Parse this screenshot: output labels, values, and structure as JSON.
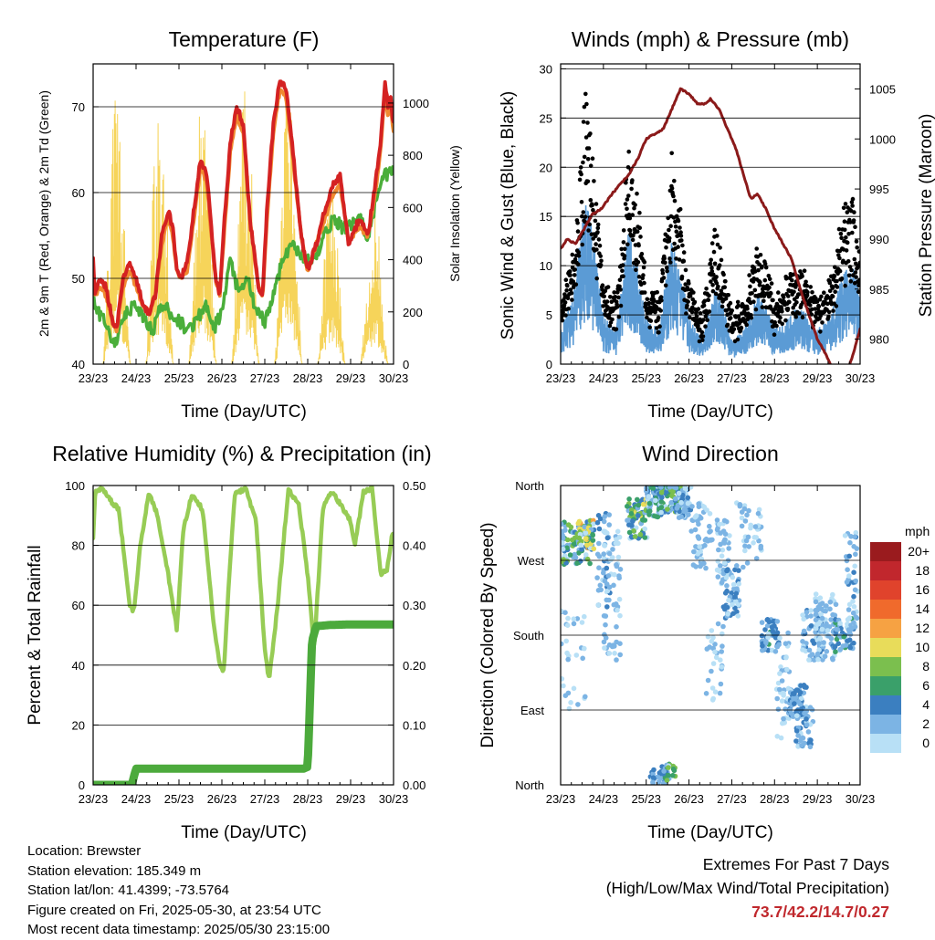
{
  "chart_data": [
    {
      "id": "temp",
      "type": "line",
      "title": "Temperature (F)",
      "xlabel": "Time (Day/UTC)",
      "ylabel": "2m & 9m T (Red, Orange) & 2m Td (Green)",
      "y2label": "Solar Insolation (Yellow)",
      "x_ticks": [
        "23/23",
        "24/23",
        "25/23",
        "26/23",
        "27/23",
        "28/23",
        "29/23",
        "30/23"
      ],
      "xlim": [
        0,
        7
      ],
      "ylim": [
        40,
        75
      ],
      "y_ticks": [
        40,
        50,
        60,
        70
      ],
      "y2lim": [
        0,
        1150
      ],
      "y2_ticks": [
        0,
        200,
        400,
        600,
        800,
        1000
      ],
      "series": [
        {
          "color": "#d42222",
          "x": [
            0,
            0.05,
            0.15,
            0.3,
            0.45,
            0.55,
            0.6,
            0.7,
            0.85,
            1.0,
            1.15,
            1.3,
            1.45,
            1.6,
            1.75,
            1.85,
            1.95,
            2.05,
            2.2,
            2.35,
            2.5,
            2.65,
            2.85,
            2.95,
            3.05,
            3.2,
            3.35,
            3.5,
            3.65,
            3.85,
            3.95,
            4.05,
            4.2,
            4.35,
            4.5,
            4.65,
            4.85,
            4.95,
            5.0,
            5.2,
            5.4,
            5.6,
            5.75,
            5.85,
            5.95,
            6.05,
            6.2,
            6.4,
            6.55,
            6.7,
            6.8,
            6.87,
            6.93,
            7.0
          ],
          "y": [
            52,
            48,
            50,
            49,
            45,
            44,
            46,
            50,
            52,
            50,
            47,
            46,
            48,
            55,
            58,
            56,
            51,
            50,
            52,
            58,
            64,
            62,
            50,
            48,
            56,
            66,
            70,
            68,
            57,
            49,
            48,
            58,
            68,
            73,
            72,
            65,
            55,
            52,
            51,
            54,
            58,
            61,
            62,
            58,
            54,
            55,
            57,
            55,
            60,
            66,
            73,
            70,
            71,
            68
          ]
        },
        {
          "color": "#f08a30",
          "x": [
            0,
            0.05,
            0.15,
            0.3,
            0.45,
            0.55,
            0.6,
            0.7,
            0.85,
            1.0,
            1.15,
            1.3,
            1.45,
            1.6,
            1.75,
            1.85,
            1.95,
            2.05,
            2.2,
            2.35,
            2.5,
            2.65,
            2.85,
            2.95,
            3.05,
            3.2,
            3.35,
            3.5,
            3.65,
            3.85,
            3.95,
            4.05,
            4.2,
            4.35,
            4.5,
            4.65,
            4.85,
            4.95,
            5.0,
            5.2,
            5.4,
            5.6,
            5.75,
            5.85,
            5.95,
            6.05,
            6.2,
            6.4,
            6.55,
            6.7,
            6.8,
            6.87,
            6.93,
            7.0
          ],
          "y": [
            51,
            48,
            49,
            48,
            45,
            44,
            46,
            49,
            51,
            49,
            47,
            46,
            48,
            54,
            57,
            55,
            51,
            50,
            51,
            57,
            63,
            61,
            50,
            48,
            55,
            65,
            69,
            67,
            57,
            49,
            48,
            57,
            67,
            72,
            71,
            64,
            55,
            52,
            51,
            54,
            57,
            60,
            61,
            58,
            54,
            55,
            56,
            55,
            59,
            65,
            72,
            69,
            70,
            67
          ]
        },
        {
          "color": "#4aae3a",
          "x": [
            0,
            0.1,
            0.3,
            0.5,
            0.6,
            0.8,
            1.0,
            1.2,
            1.4,
            1.6,
            1.8,
            2.0,
            2.2,
            2.4,
            2.6,
            2.8,
            3.0,
            3.2,
            3.4,
            3.6,
            3.8,
            4.0,
            4.2,
            4.4,
            4.6,
            4.8,
            5.0,
            5.2,
            5.4,
            5.6,
            5.8,
            6.0,
            6.2,
            6.4,
            6.6,
            6.8,
            6.9,
            7.0
          ],
          "y": [
            48,
            46,
            45,
            42,
            44,
            46,
            47,
            45,
            44,
            47,
            46,
            45,
            44,
            45,
            47,
            44,
            46,
            52,
            48,
            50,
            46,
            45,
            48,
            52,
            54,
            53,
            52,
            53,
            55,
            57,
            56,
            56,
            57,
            55,
            59,
            62,
            62,
            63
          ]
        }
      ],
      "solar": {
        "color": "#f6d45a",
        "days": [
          [
            0.55,
            1060
          ],
          [
            1.55,
            1020
          ],
          [
            2.55,
            1050
          ],
          [
            3.55,
            1060
          ],
          [
            4.55,
            1020
          ],
          [
            5.55,
            700
          ],
          [
            6.55,
            600
          ]
        ]
      }
    },
    {
      "id": "wind",
      "type": "scatter",
      "title": "Winds (mph) & Pressure (mb)",
      "xlabel": "Time (Day/UTC)",
      "ylabel": "Sonic Wind & Gust (Blue, Black)",
      "y2label": "Station Pressure (Maroon)",
      "x_ticks": [
        "23/23",
        "24/23",
        "25/23",
        "26/23",
        "27/23",
        "28/23",
        "29/23",
        "30/23"
      ],
      "xlim": [
        0,
        7
      ],
      "ylim": [
        0,
        30.5
      ],
      "y_ticks": [
        0,
        5,
        10,
        15,
        20,
        25,
        30
      ],
      "y2lim": [
        977.5,
        1007.5
      ],
      "y2_ticks": [
        980,
        985,
        990,
        995,
        1000,
        1005
      ],
      "series": [
        {
          "color": "#8b1a1a",
          "x": [
            0,
            0.15,
            0.35,
            0.55,
            0.75,
            0.95,
            1.2,
            1.4,
            1.6,
            1.8,
            2.0,
            2.2,
            2.4,
            2.6,
            2.8,
            3.0,
            3.2,
            3.4,
            3.5,
            3.7,
            3.9,
            4.1,
            4.3,
            4.45,
            4.6,
            4.8,
            5.0,
            5.2,
            5.4,
            5.6,
            5.8,
            6.0,
            6.2,
            6.4,
            6.6,
            6.8,
            6.9,
            7.0
          ],
          "y": [
            989,
            990,
            989.5,
            991,
            992.5,
            993,
            994.5,
            995.5,
            996.5,
            998,
            1000,
            1000.5,
            1001,
            1003,
            1005,
            1004.5,
            1003.5,
            1003.5,
            1004,
            1003,
            1001,
            999,
            996,
            994,
            994.5,
            993,
            991,
            989.5,
            988,
            985,
            982.5,
            980,
            978.5,
            976.5,
            975.5,
            978,
            979.5,
            981
          ]
        },
        {
          "color": "#000000",
          "note": "gusts"
        },
        {
          "color": "#5b9bd5",
          "note": "sonic wind"
        }
      ]
    },
    {
      "id": "rh",
      "type": "line",
      "title": "Relative Humidity (%) & Precipitation (in)",
      "xlabel": "Time (Day/UTC)",
      "ylabel": "Percent & Total Rainfall",
      "x_ticks": [
        "23/23",
        "24/23",
        "25/23",
        "26/23",
        "27/23",
        "28/23",
        "29/23",
        "30/23"
      ],
      "xlim": [
        0,
        7
      ],
      "ylim": [
        0,
        100
      ],
      "y_ticks": [
        0,
        20,
        40,
        60,
        80,
        100
      ],
      "y2lim": [
        0,
        0.5
      ],
      "y2_ticks": [
        "0.00",
        "0.10",
        "0.20",
        "0.30",
        "0.40",
        "0.50"
      ],
      "series": [
        {
          "color": "#97cc55",
          "x": [
            0,
            0.05,
            0.2,
            0.4,
            0.6,
            0.85,
            0.95,
            1.1,
            1.3,
            1.5,
            1.75,
            1.95,
            2.1,
            2.3,
            2.55,
            2.8,
            2.95,
            3.05,
            3.15,
            3.3,
            3.55,
            3.8,
            4.0,
            4.1,
            4.3,
            4.55,
            4.8,
            5.0,
            5.15,
            5.35,
            5.55,
            5.8,
            6.0,
            6.1,
            6.3,
            6.5,
            6.7,
            6.85,
            6.95,
            7.0
          ],
          "y": [
            83,
            98,
            99,
            95,
            92,
            60,
            58,
            80,
            98,
            90,
            70,
            52,
            85,
            97,
            92,
            55,
            40,
            38,
            65,
            97,
            99,
            88,
            45,
            35,
            60,
            99,
            93,
            70,
            45,
            92,
            98,
            93,
            88,
            80,
            98,
            99,
            70,
            72,
            82,
            84
          ]
        },
        {
          "color": "#4caa3c",
          "x": [
            0,
            0.5,
            0.9,
            1.0,
            4.9,
            5.0,
            5.1,
            5.2,
            5.5,
            6.0,
            7.0
          ],
          "y": [
            0,
            0,
            0,
            0.027,
            0.027,
            0.03,
            0.24,
            0.265,
            0.267,
            0.268,
            0.268
          ]
        }
      ]
    },
    {
      "id": "dir",
      "type": "scatter",
      "title": "Wind Direction",
      "xlabel": "Time (Day/UTC)",
      "ylabel": "Direction (Colored By Speed)",
      "x_ticks": [
        "23/23",
        "24/23",
        "25/23",
        "26/23",
        "27/23",
        "28/23",
        "29/23",
        "30/23"
      ],
      "xlim": [
        0,
        7
      ],
      "y_ticks": [
        "North",
        "East",
        "South",
        "West",
        "North"
      ],
      "legend": {
        "title": "mph",
        "labels": [
          "20+",
          "18",
          "16",
          "14",
          "12",
          "10",
          "8",
          "6",
          "4",
          "2",
          "0"
        ],
        "colors": [
          "#9a1b1e",
          "#c1272d",
          "#e0432c",
          "#f06a2c",
          "#f6a243",
          "#e8dc5a",
          "#7bbf4e",
          "#3aa06a",
          "#3b7fc0",
          "#7cb4e4",
          "#b8e0f6"
        ]
      }
    }
  ],
  "info": {
    "location": "Location: Brewster",
    "elevation": "Station elevation: 185.349 m",
    "latlon": "Station lat/lon: 41.4399; -73.5764",
    "created": "Figure created on Fri, 2025-05-30, at 23:54 UTC",
    "recent": "Most recent data timestamp: 2025/05/30 23:15:00"
  },
  "extremes": {
    "title": "Extremes For Past 7 Days",
    "subtitle": "(High/Low/Max Wind/Total Precipitation)",
    "values": "73.7/42.2/14.7/0.27"
  }
}
